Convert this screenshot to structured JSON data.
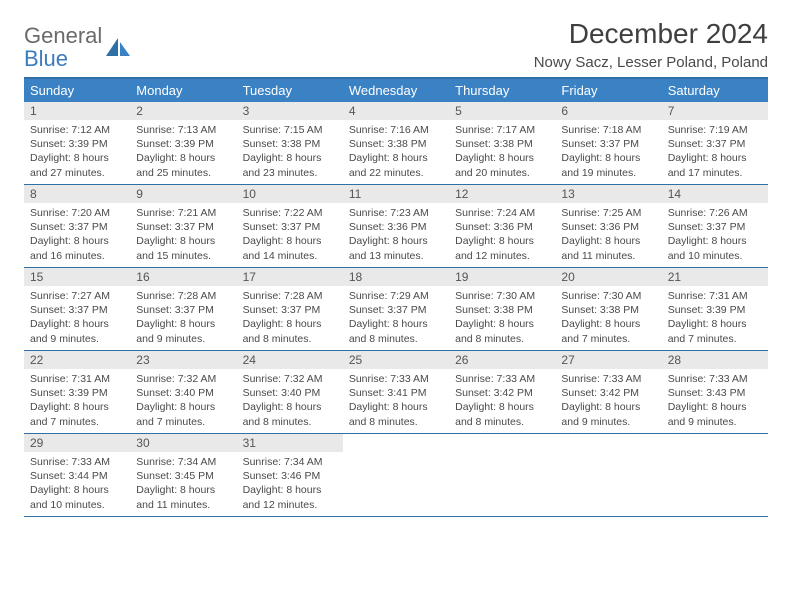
{
  "brand": {
    "part1": "General",
    "part2": "Blue"
  },
  "title": "December 2024",
  "subtitle": "Nowy Sacz, Lesser Poland, Poland",
  "colors": {
    "header_bg": "#3b82c4",
    "header_border": "#2e6fa8",
    "daynum_bg": "#e9e9e9",
    "text": "#4a4a4a",
    "brand_blue": "#3b7bbf"
  },
  "weekdays": [
    "Sunday",
    "Monday",
    "Tuesday",
    "Wednesday",
    "Thursday",
    "Friday",
    "Saturday"
  ],
  "days": [
    {
      "n": 1,
      "sr": "7:12 AM",
      "ss": "3:39 PM",
      "dl": "8 hours and 27 minutes."
    },
    {
      "n": 2,
      "sr": "7:13 AM",
      "ss": "3:39 PM",
      "dl": "8 hours and 25 minutes."
    },
    {
      "n": 3,
      "sr": "7:15 AM",
      "ss": "3:38 PM",
      "dl": "8 hours and 23 minutes."
    },
    {
      "n": 4,
      "sr": "7:16 AM",
      "ss": "3:38 PM",
      "dl": "8 hours and 22 minutes."
    },
    {
      "n": 5,
      "sr": "7:17 AM",
      "ss": "3:38 PM",
      "dl": "8 hours and 20 minutes."
    },
    {
      "n": 6,
      "sr": "7:18 AM",
      "ss": "3:37 PM",
      "dl": "8 hours and 19 minutes."
    },
    {
      "n": 7,
      "sr": "7:19 AM",
      "ss": "3:37 PM",
      "dl": "8 hours and 17 minutes."
    },
    {
      "n": 8,
      "sr": "7:20 AM",
      "ss": "3:37 PM",
      "dl": "8 hours and 16 minutes."
    },
    {
      "n": 9,
      "sr": "7:21 AM",
      "ss": "3:37 PM",
      "dl": "8 hours and 15 minutes."
    },
    {
      "n": 10,
      "sr": "7:22 AM",
      "ss": "3:37 PM",
      "dl": "8 hours and 14 minutes."
    },
    {
      "n": 11,
      "sr": "7:23 AM",
      "ss": "3:36 PM",
      "dl": "8 hours and 13 minutes."
    },
    {
      "n": 12,
      "sr": "7:24 AM",
      "ss": "3:36 PM",
      "dl": "8 hours and 12 minutes."
    },
    {
      "n": 13,
      "sr": "7:25 AM",
      "ss": "3:36 PM",
      "dl": "8 hours and 11 minutes."
    },
    {
      "n": 14,
      "sr": "7:26 AM",
      "ss": "3:37 PM",
      "dl": "8 hours and 10 minutes."
    },
    {
      "n": 15,
      "sr": "7:27 AM",
      "ss": "3:37 PM",
      "dl": "8 hours and 9 minutes."
    },
    {
      "n": 16,
      "sr": "7:28 AM",
      "ss": "3:37 PM",
      "dl": "8 hours and 9 minutes."
    },
    {
      "n": 17,
      "sr": "7:28 AM",
      "ss": "3:37 PM",
      "dl": "8 hours and 8 minutes."
    },
    {
      "n": 18,
      "sr": "7:29 AM",
      "ss": "3:37 PM",
      "dl": "8 hours and 8 minutes."
    },
    {
      "n": 19,
      "sr": "7:30 AM",
      "ss": "3:38 PM",
      "dl": "8 hours and 8 minutes."
    },
    {
      "n": 20,
      "sr": "7:30 AM",
      "ss": "3:38 PM",
      "dl": "8 hours and 7 minutes."
    },
    {
      "n": 21,
      "sr": "7:31 AM",
      "ss": "3:39 PM",
      "dl": "8 hours and 7 minutes."
    },
    {
      "n": 22,
      "sr": "7:31 AM",
      "ss": "3:39 PM",
      "dl": "8 hours and 7 minutes."
    },
    {
      "n": 23,
      "sr": "7:32 AM",
      "ss": "3:40 PM",
      "dl": "8 hours and 7 minutes."
    },
    {
      "n": 24,
      "sr": "7:32 AM",
      "ss": "3:40 PM",
      "dl": "8 hours and 8 minutes."
    },
    {
      "n": 25,
      "sr": "7:33 AM",
      "ss": "3:41 PM",
      "dl": "8 hours and 8 minutes."
    },
    {
      "n": 26,
      "sr": "7:33 AM",
      "ss": "3:42 PM",
      "dl": "8 hours and 8 minutes."
    },
    {
      "n": 27,
      "sr": "7:33 AM",
      "ss": "3:42 PM",
      "dl": "8 hours and 9 minutes."
    },
    {
      "n": 28,
      "sr": "7:33 AM",
      "ss": "3:43 PM",
      "dl": "8 hours and 9 minutes."
    },
    {
      "n": 29,
      "sr": "7:33 AM",
      "ss": "3:44 PM",
      "dl": "8 hours and 10 minutes."
    },
    {
      "n": 30,
      "sr": "7:34 AM",
      "ss": "3:45 PM",
      "dl": "8 hours and 11 minutes."
    },
    {
      "n": 31,
      "sr": "7:34 AM",
      "ss": "3:46 PM",
      "dl": "8 hours and 12 minutes."
    }
  ],
  "labels": {
    "sunrise": "Sunrise:",
    "sunset": "Sunset:",
    "daylight": "Daylight:"
  }
}
